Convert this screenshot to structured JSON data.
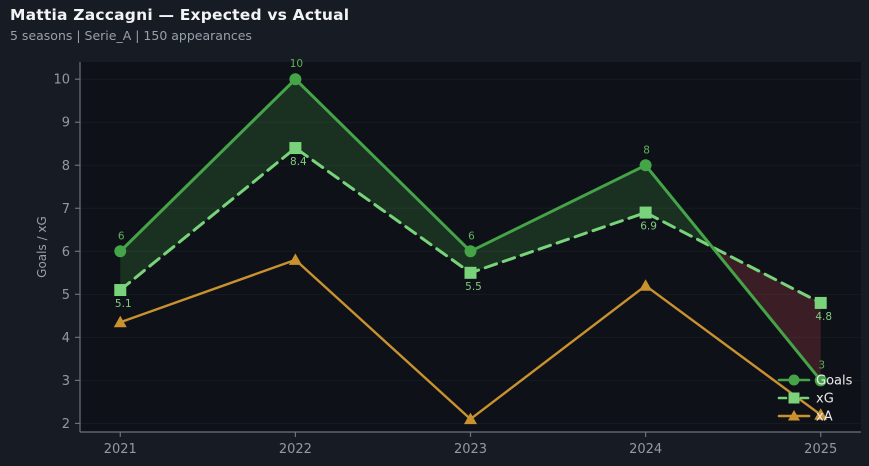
{
  "header": {
    "title": "Mattia Zaccagni — Expected vs Actual",
    "subtitle": "5 seasons | Serie_A | 150 appearances"
  },
  "ui": {
    "colors": {
      "figure_bg": "#171b24",
      "axes_bg": "#0e1117",
      "grid": "rgba(160,180,215,0.06)",
      "spine": "#6b7280",
      "tick_label": "#9299a3",
      "axis_label": "#9aa1ab",
      "title": "#f2f3f5",
      "subtitle": "#98a0ac",
      "legend_text": "#e9eaec"
    }
  },
  "chart_data": {
    "type": "line",
    "title": "Mattia Zaccagni — Expected vs Actual",
    "xlabel": "",
    "ylabel": "Goals / xG",
    "x": [
      2021,
      2022,
      2023,
      2024,
      2025
    ],
    "xticks": [
      "2021",
      "2022",
      "2023",
      "2024",
      "2025"
    ],
    "yticks": [
      2,
      3,
      4,
      5,
      6,
      7,
      8,
      9,
      10
    ],
    "xlim": [
      2020.77,
      2025.23
    ],
    "ylim": [
      1.8,
      10.4
    ],
    "grid": true,
    "series": [
      {
        "name": "Goals",
        "values": [
          6,
          10,
          6,
          8,
          3
        ],
        "labels": [
          "6",
          "10",
          "6",
          "8",
          "3"
        ],
        "label_placement": "above",
        "label_color": "#5fb15a",
        "color": "#44a447",
        "marker": "circle",
        "style": "solid"
      },
      {
        "name": "xG",
        "values": [
          5.1,
          8.4,
          5.5,
          6.9,
          4.8
        ],
        "labels": [
          "5.1",
          "8.4",
          "5.5",
          "6.9",
          "4.8"
        ],
        "label_placement": "below",
        "label_color": "#80cb7d",
        "color": "#78d37a",
        "marker": "square",
        "style": "dashed"
      },
      {
        "name": "xA",
        "values": [
          4.35,
          5.8,
          2.1,
          5.2,
          2.2
        ],
        "labels": null,
        "label_placement": null,
        "label_color": null,
        "color": "#c9922f",
        "marker": "triangle",
        "style": "solid"
      }
    ],
    "fill_between": {
      "upper": "Goals",
      "lower": "xG",
      "positive_color": "rgba(72,162,76,0.22)",
      "negative_color": "rgba(188,70,76,0.26)"
    },
    "legend": {
      "position": "lower right",
      "entries": [
        "Goals",
        "xG",
        "xA"
      ]
    }
  }
}
